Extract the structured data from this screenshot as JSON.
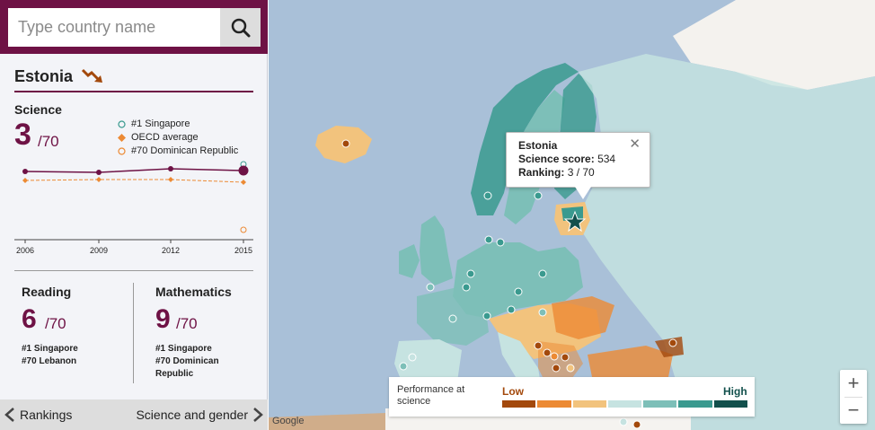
{
  "search": {
    "placeholder": "Type country name"
  },
  "country": {
    "name": "Estonia",
    "trend_icon": "trend-down-icon"
  },
  "science": {
    "label": "Science",
    "rank": "3",
    "total": "/70",
    "legend": [
      {
        "label": "#1 Singapore",
        "marker": "circle-teal"
      },
      {
        "label": "OECD average",
        "marker": "diamond-orange"
      },
      {
        "label": "#70 Dominican Republic",
        "marker": "circle-orange"
      }
    ],
    "years": [
      "2006",
      "2009",
      "2012",
      "2015"
    ]
  },
  "reading": {
    "label": "Reading",
    "rank": "6",
    "total": "/70",
    "top": "#1 Singapore",
    "bottom": "#70 Lebanon"
  },
  "mathematics": {
    "label": "Mathematics",
    "rank": "9",
    "total": "/70",
    "top": "#1 Singapore",
    "bottom": "#70 Dominican",
    "bottom2": "Republic"
  },
  "nav": {
    "prev": "Rankings",
    "next": "Science and gender"
  },
  "tooltip": {
    "country": "Estonia",
    "score_label": "Science score:",
    "score_value": "534",
    "rank_label": "Ranking:",
    "rank_value": "3 / 70"
  },
  "legend": {
    "title_line1": "Performance at",
    "title_line2": "science",
    "low": "Low",
    "high": "High",
    "colors": [
      "#a3490c",
      "#ec8a34",
      "#f2c37d",
      "#c6e3e1",
      "#7dbfb8",
      "#3a9a8f",
      "#12504c"
    ]
  },
  "map_credit": "Google",
  "colors": {
    "brand": "#6e1245",
    "water": "#a9c0d8",
    "land": "#f5f3f0"
  }
}
